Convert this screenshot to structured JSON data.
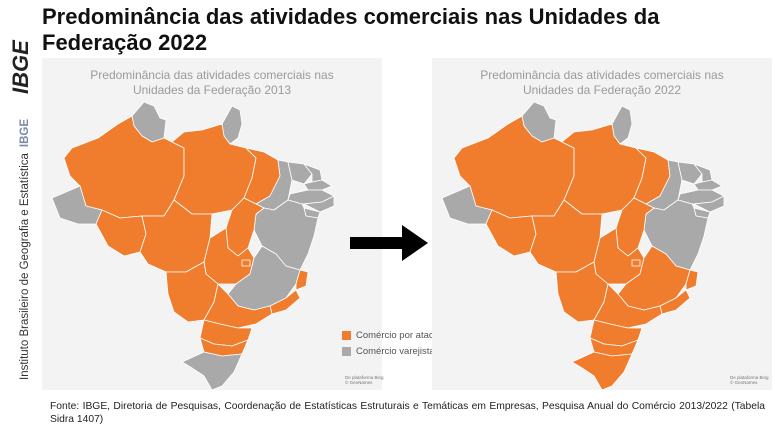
{
  "header": {
    "title_line1": "Predominância das atividades comerciais nas Unidades da",
    "title_line2": "Federação 2022"
  },
  "sidebar": {
    "logo_text": "IBGE",
    "institute": "Instituto Brasileiro de Geografia e Estatística",
    "abbr": "IBGE"
  },
  "maps": {
    "left": {
      "title_line1": "Predominância das atividades comerciais nas",
      "title_line2": "Unidades da Federação 2013",
      "credit_line1": "De plataforma Bing",
      "credit_line2": "© GeoNames"
    },
    "right": {
      "title_line1": "Predominância das atividades comerciais nas",
      "title_line2": "Unidades da Federação 2022",
      "credit_line1": "De plataforma Bing",
      "credit_line2": "© GeoNames"
    }
  },
  "legend": {
    "items": [
      {
        "label": "Comércio por atacado",
        "color": "#ef7d2d"
      },
      {
        "label": "Comércio varejista",
        "color": "#a9a9a9"
      }
    ]
  },
  "colors": {
    "wholesale": "#ef7d2d",
    "retail": "#a9a9a9",
    "arrow": "#000000"
  },
  "source": {
    "text": "Fonte: IBGE, Diretoria de Pesquisas, Coordenação de Estatísticas Estruturais e Temáticas em Empresas, Pesquisa Anual do Comércio 2013/2022 (Tabela Sidra 1407)"
  }
}
